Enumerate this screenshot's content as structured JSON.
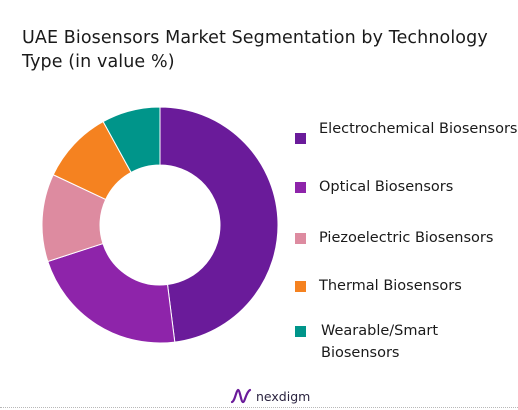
{
  "chart_data": {
    "type": "pie",
    "variant": "donut",
    "title": "UAE Biosensors Market Segmentation by Technology Type (in value %)",
    "categories": [
      "Electrochemical Biosensors",
      "Optical Biosensors",
      "Piezoelectric Biosensors",
      "Thermal Biosensors",
      "Wearable/Smart Biosensors"
    ],
    "values": [
      48,
      22,
      12,
      10,
      8
    ],
    "colors": [
      "#6a1b9a",
      "#8e24aa",
      "#dd8ba0",
      "#f58220",
      "#00958a"
    ],
    "legend_position": "right"
  },
  "legend": [
    {
      "label": "Electrochemical Biosensors",
      "color": "#6a1b9a"
    },
    {
      "label": "Optical Biosensors",
      "color": "#8e24aa"
    },
    {
      "label": "Piezoelectric Biosensors",
      "color": "#dd8ba0"
    },
    {
      "label": "Thermal Biosensors",
      "color": "#f58220"
    },
    {
      "label": "Wearable/Smart Biosensors",
      "color": "#00958a"
    }
  ],
  "footer": {
    "brand": "nexdigm",
    "logo_icon": "nexdigm-logo-icon",
    "brand_color": "#6a1b9a"
  }
}
